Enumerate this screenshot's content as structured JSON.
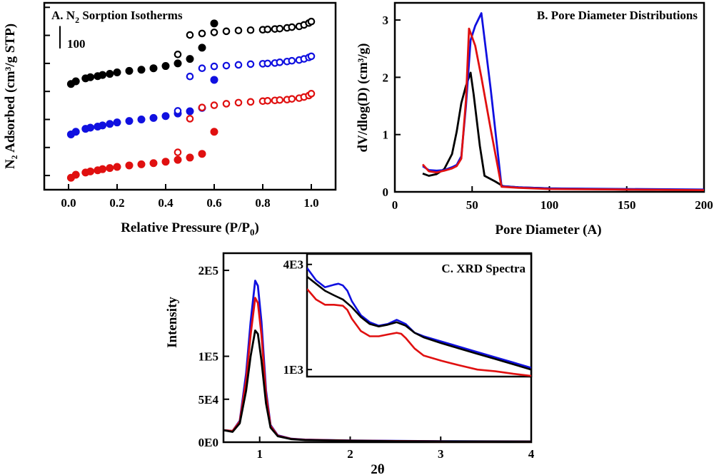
{
  "colors": {
    "black": "#000000",
    "blue": "#1010e0",
    "red": "#e01010",
    "axis": "#000000",
    "background": "#ffffff"
  },
  "chart_data": [
    {
      "id": "A",
      "type": "scatter",
      "title": "A. N",
      "title_sub": "2",
      "title_rest": " Sorption Isotherms",
      "xlabel": "Relative Pressure (P/P",
      "xlabel_sub": "0",
      "xlabel_end": ")",
      "ylabel": "N₂ Adsorbed (cm³/g STP)",
      "xlim": [
        -0.1,
        1.1
      ],
      "xticks": [
        0.0,
        0.2,
        0.4,
        0.6,
        0.8,
        1.0
      ],
      "xtick_labels": [
        "0.0",
        "0.2",
        "0.4",
        "0.6",
        "0.8",
        "1.0"
      ],
      "ylim": [
        0,
        500
      ],
      "yticks": [
        38,
        113,
        188,
        263,
        338,
        413,
        488
      ],
      "ytick_labels": [
        "",
        "",
        "",
        "",
        "",
        "",
        ""
      ],
      "scale_bar": {
        "label": "100",
        "from": 438,
        "to": 378
      },
      "series": [
        {
          "name": "black",
          "color": "black",
          "adsorption": {
            "x": [
              0.01,
              0.03,
              0.07,
              0.09,
              0.12,
              0.14,
              0.17,
              0.2,
              0.25,
              0.3,
              0.35,
              0.4,
              0.45,
              0.5,
              0.55,
              0.6
            ],
            "y": [
              283,
              290,
              298,
              301,
              304,
              307,
              310,
              314,
              318,
              321,
              325,
              331,
              338,
              350,
              380,
              445
            ]
          },
          "desorption": {
            "x": [
              0.45,
              0.5,
              0.55,
              0.6,
              0.65,
              0.7,
              0.75,
              0.8,
              0.82,
              0.85,
              0.87,
              0.9,
              0.92,
              0.95,
              0.97,
              0.99,
              1.0
            ],
            "y": [
              362,
              414,
              418,
              421,
              424,
              426,
              427,
              428,
              429,
              430,
              431,
              433,
              435,
              437,
              441,
              446,
              450
            ]
          }
        },
        {
          "name": "blue",
          "color": "blue",
          "adsorption": {
            "x": [
              0.01,
              0.03,
              0.07,
              0.09,
              0.12,
              0.14,
              0.17,
              0.2,
              0.25,
              0.3,
              0.35,
              0.4,
              0.45,
              0.5,
              0.55,
              0.6
            ],
            "y": [
              148,
              155,
              163,
              166,
              169,
              172,
              176,
              180,
              184,
              188,
              192,
              197,
              204,
              210,
              219,
              294
            ]
          },
          "desorption": {
            "x": [
              0.45,
              0.5,
              0.55,
              0.6,
              0.65,
              0.7,
              0.75,
              0.8,
              0.82,
              0.85,
              0.87,
              0.9,
              0.92,
              0.95,
              0.97,
              0.99,
              1.0
            ],
            "y": [
              211,
              303,
              325,
              330,
              332,
              334,
              336,
              337,
              338,
              339,
              341,
              343,
              345,
              347,
              350,
              354,
              357
            ]
          }
        },
        {
          "name": "red",
          "color": "red",
          "adsorption": {
            "x": [
              0.01,
              0.03,
              0.07,
              0.09,
              0.12,
              0.14,
              0.17,
              0.2,
              0.25,
              0.3,
              0.35,
              0.4,
              0.45,
              0.5,
              0.55,
              0.6
            ],
            "y": [
              32,
              40,
              46,
              49,
              52,
              55,
              58,
              61,
              65,
              68,
              71,
              75,
              80,
              86,
              96,
              155
            ]
          },
          "desorption": {
            "x": [
              0.45,
              0.5,
              0.55,
              0.6,
              0.65,
              0.7,
              0.75,
              0.8,
              0.82,
              0.85,
              0.87,
              0.9,
              0.92,
              0.95,
              0.97,
              0.99,
              1.0
            ],
            "y": [
              100,
              190,
              220,
              226,
              230,
              233,
              235,
              237,
              238,
              239,
              240,
              241,
              243,
              245,
              248,
              252,
              257
            ]
          }
        }
      ]
    },
    {
      "id": "B",
      "type": "line",
      "title": "B. Pore Diameter Distributions",
      "xlabel": "Pore Diameter (A)",
      "ylabel": "dV/dlog(D) (cm³/g)",
      "xlim": [
        0,
        200
      ],
      "ylim": [
        0,
        3.3
      ],
      "xticks": [
        0,
        50,
        100,
        150,
        200
      ],
      "xtick_labels": [
        "0",
        "50",
        "100",
        "150",
        "200"
      ],
      "yticks": [
        0,
        1,
        2,
        3
      ],
      "ytick_labels": [
        "0",
        "1",
        "2",
        "3"
      ],
      "series": [
        {
          "name": "black",
          "color": "black",
          "x": [
            18,
            22,
            27,
            32,
            37,
            40,
            43,
            46,
            49,
            51,
            55,
            58,
            65,
            70,
            80,
            100,
            150,
            200
          ],
          "y": [
            0.32,
            0.28,
            0.31,
            0.4,
            0.66,
            1.05,
            1.55,
            1.85,
            2.08,
            1.7,
            0.8,
            0.28,
            0.18,
            0.1,
            0.08,
            0.06,
            0.04,
            0.03
          ]
        },
        {
          "name": "blue",
          "color": "blue",
          "x": [
            18,
            22,
            27,
            32,
            37,
            40,
            43,
            46,
            49,
            52,
            56,
            62,
            69,
            80,
            100,
            150,
            200
          ],
          "y": [
            0.45,
            0.38,
            0.37,
            0.38,
            0.43,
            0.47,
            0.62,
            1.5,
            2.65,
            2.9,
            3.12,
            1.8,
            0.1,
            0.08,
            0.06,
            0.05,
            0.04
          ]
        },
        {
          "name": "red",
          "color": "red",
          "x": [
            18,
            22,
            27,
            32,
            37,
            40,
            43,
            46,
            48,
            52,
            56,
            62,
            69,
            80,
            100,
            150,
            200
          ],
          "y": [
            0.48,
            0.36,
            0.34,
            0.37,
            0.41,
            0.45,
            0.58,
            1.6,
            2.85,
            2.55,
            2.0,
            1.1,
            0.09,
            0.07,
            0.05,
            0.04,
            0.03
          ]
        }
      ]
    },
    {
      "id": "C",
      "type": "line",
      "xlabel": "2θ",
      "ylabel": "Intensity",
      "xlim": [
        0.6,
        4.0
      ],
      "ylim": [
        0,
        220000
      ],
      "xticks": [
        1,
        2,
        3,
        4
      ],
      "xtick_labels": [
        "1",
        "2",
        "3",
        "4"
      ],
      "yticks": [
        0,
        50000,
        100000,
        200000
      ],
      "ytick_labels": [
        "0E0",
        "5E4",
        "1E5",
        "2E5"
      ],
      "series": [
        {
          "name": "blue",
          "color": "blue",
          "x": [
            0.6,
            0.7,
            0.78,
            0.85,
            0.9,
            0.95,
            0.98,
            1.02,
            1.07,
            1.12,
            1.2,
            1.35,
            1.5,
            2.0,
            2.5,
            3.0,
            3.5,
            4.0
          ],
          "y": [
            14000,
            13000,
            25000,
            80000,
            140000,
            188000,
            182000,
            140000,
            60000,
            20000,
            8000,
            4000,
            3000,
            2000,
            1500,
            1200,
            1000,
            900
          ]
        },
        {
          "name": "red",
          "color": "red",
          "x": [
            0.6,
            0.7,
            0.78,
            0.85,
            0.9,
            0.95,
            0.98,
            1.02,
            1.07,
            1.12,
            1.2,
            1.35,
            1.5,
            2.0,
            2.5,
            3.0,
            3.5,
            4.0
          ],
          "y": [
            14000,
            13000,
            24000,
            72000,
            125000,
            168000,
            162000,
            125000,
            55000,
            19000,
            7500,
            3800,
            2700,
            1800,
            1300,
            1000,
            800,
            700
          ]
        },
        {
          "name": "black",
          "color": "black",
          "x": [
            0.6,
            0.7,
            0.78,
            0.85,
            0.9,
            0.95,
            0.98,
            1.02,
            1.07,
            1.12,
            1.2,
            1.35,
            1.5,
            2.0,
            2.5,
            3.0,
            3.5,
            4.0
          ],
          "y": [
            14000,
            12000,
            22000,
            60000,
            100000,
            130000,
            126000,
            95000,
            45000,
            17000,
            7000,
            3600,
            2500,
            1700,
            1200,
            950,
            800,
            700
          ]
        }
      ]
    },
    {
      "id": "C-inset",
      "type": "line",
      "title": "C. XRD Spectra",
      "xlim": [
        1.5,
        4.0
      ],
      "ylim": [
        800,
        4300
      ],
      "yticks": [
        1000,
        4000
      ],
      "ytick_labels": [
        "1E3",
        "4E3"
      ],
      "series": [
        {
          "name": "blue",
          "color": "blue",
          "x": [
            1.5,
            1.6,
            1.7,
            1.8,
            1.85,
            1.9,
            1.95,
            2.0,
            2.1,
            2.2,
            2.3,
            2.4,
            2.5,
            2.6,
            2.7,
            2.8,
            3.0,
            3.2,
            3.4,
            3.6,
            3.8,
            4.0
          ],
          "y": [
            3900,
            3550,
            3350,
            3420,
            3450,
            3400,
            3250,
            2950,
            2550,
            2350,
            2250,
            2300,
            2420,
            2300,
            2050,
            1950,
            1800,
            1650,
            1500,
            1350,
            1200,
            1050
          ]
        },
        {
          "name": "black",
          "color": "black",
          "x": [
            1.5,
            1.6,
            1.7,
            1.8,
            1.9,
            2.0,
            2.1,
            2.2,
            2.3,
            2.4,
            2.5,
            2.6,
            2.7,
            2.8,
            3.0,
            3.2,
            3.4,
            3.6,
            3.8,
            4.0
          ],
          "y": [
            3650,
            3450,
            3250,
            3120,
            3000,
            2780,
            2500,
            2300,
            2230,
            2280,
            2350,
            2250,
            2050,
            1920,
            1750,
            1600,
            1450,
            1300,
            1150,
            1000
          ]
        },
        {
          "name": "red",
          "color": "red",
          "x": [
            1.5,
            1.6,
            1.7,
            1.8,
            1.9,
            1.95,
            2.0,
            2.1,
            2.2,
            2.3,
            2.4,
            2.5,
            2.55,
            2.6,
            2.7,
            2.8,
            3.0,
            3.2,
            3.4,
            3.6,
            3.8,
            4.0
          ],
          "y": [
            3300,
            3000,
            2850,
            2850,
            2820,
            2700,
            2450,
            2100,
            1950,
            1950,
            2000,
            2050,
            2020,
            1900,
            1600,
            1400,
            1250,
            1120,
            1000,
            950,
            880,
            820
          ]
        }
      ]
    }
  ]
}
